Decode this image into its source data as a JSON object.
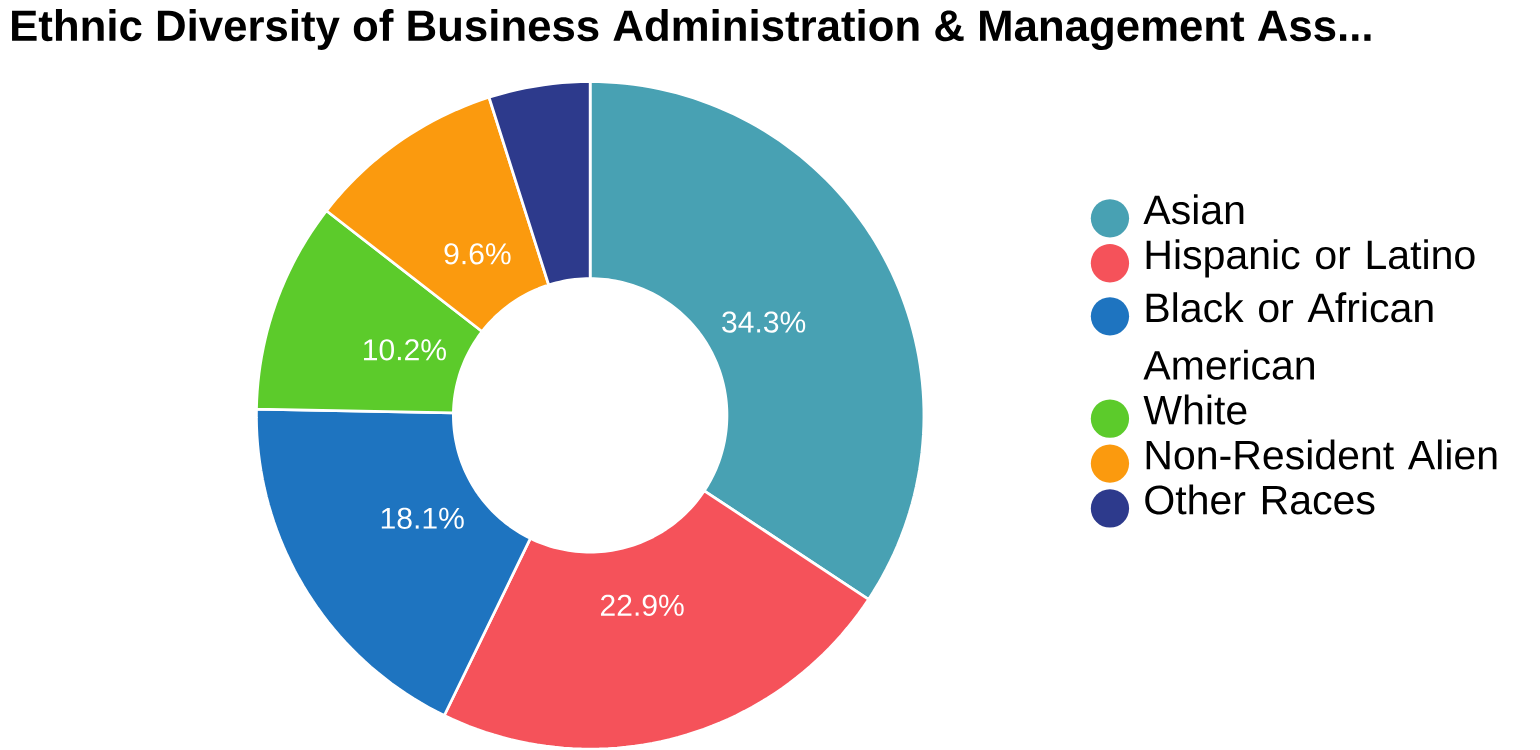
{
  "chart_data": {
    "type": "donut",
    "title": "Ethnic Diversity of Business Administration & Management Ass...",
    "categories": [
      "Asian",
      "Hispanic or Latino",
      "Black or African American",
      "White",
      "Non-Resident Alien",
      "Other Races"
    ],
    "values": [
      34.3,
      22.9,
      18.1,
      10.2,
      9.6,
      4.9
    ],
    "colors": [
      "#48a1b3",
      "#f5525a",
      "#1e74c0",
      "#5ccb2b",
      "#fb9a0e",
      "#2d3a8c"
    ],
    "value_labels": [
      "34.3%",
      "22.9%",
      "18.1%",
      "10.2%",
      "9.6%",
      null
    ],
    "legend": "right"
  }
}
